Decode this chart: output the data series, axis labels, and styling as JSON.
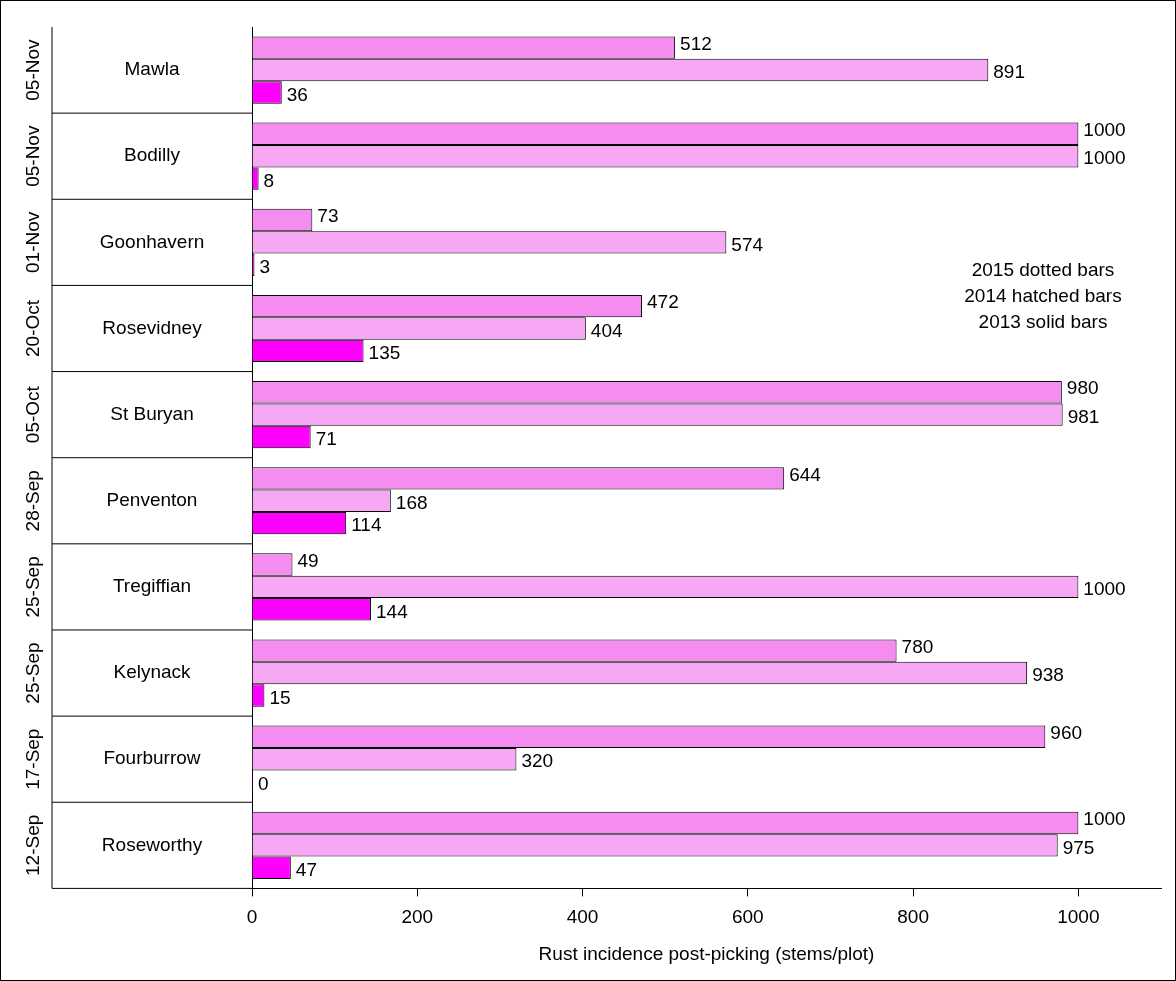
{
  "chart_data": {
    "type": "bar",
    "orientation": "horizontal",
    "xlabel": "Rust incidence post-picking (stems/plot)",
    "categories": [
      "Mawla",
      "Bodilly",
      "Goonhavern",
      "Rosevidney",
      "St Buryan",
      "Penventon",
      "Tregiffian",
      "Kelynack",
      "Fourburrow",
      "Roseworthy"
    ],
    "series": [
      {
        "color": "#f58cf0",
        "values": [
          512,
          1000,
          73,
          472,
          980,
          644,
          49,
          780,
          960,
          1000
        ]
      },
      {
        "color": "#f7a8f4",
        "values": [
          891,
          1000,
          574,
          404,
          981,
          168,
          1000,
          938,
          320,
          975
        ]
      },
      {
        "color": "#ff00ff",
        "values": [
          36,
          8,
          3,
          135,
          71,
          114,
          144,
          15,
          0,
          47
        ]
      }
    ],
    "xlim": [
      0,
      1100
    ],
    "xticks": [
      0,
      200,
      400,
      600,
      800,
      1000
    ],
    "grid": false,
    "legend": false,
    "data_labels": true,
    "annotations": [
      "2015 dotted bars",
      "2014 hatched bars",
      "2013 solid bars",
      "05-Nov",
      "05-Nov",
      "01-Nov",
      "20-Oct",
      "05-Oct",
      "28-Sep",
      "25-Sep",
      "25-Sep",
      "17-Sep",
      "12-Sep"
    ]
  }
}
